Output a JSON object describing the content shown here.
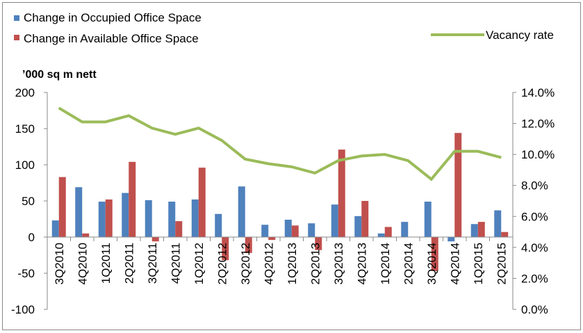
{
  "chart_data": {
    "type": "bar",
    "unit_label": "’000 sq m nett",
    "categories": [
      "3Q2010",
      "4Q2010",
      "1Q2011",
      "2Q2011",
      "3Q2011",
      "4Q2011",
      "1Q2012",
      "2Q2012",
      "3Q2012",
      "4Q2012",
      "1Q2013",
      "2Q2013",
      "3Q2013",
      "4Q2013",
      "1Q2014",
      "2Q2014",
      "3Q2014",
      "4Q2014",
      "1Q2015",
      "2Q2015"
    ],
    "series": [
      {
        "name": "Change in Occupied Office Space",
        "type": "bar",
        "axis": "left",
        "color": "#4f81bd",
        "values": [
          23,
          69,
          49,
          61,
          51,
          49,
          52,
          32,
          70,
          17,
          24,
          19,
          45,
          29,
          5,
          21,
          49,
          -6,
          18,
          37
        ]
      },
      {
        "name": "Change in Available Office Space",
        "type": "bar",
        "axis": "left",
        "color": "#c0504d",
        "values": [
          83,
          5,
          52,
          104,
          -6,
          22,
          96,
          -32,
          -22,
          -4,
          16,
          -18,
          121,
          50,
          14,
          0,
          -47,
          144,
          21,
          7
        ]
      },
      {
        "name": "Vacancy rate",
        "type": "line",
        "axis": "right",
        "color": "#9bbb59",
        "values": [
          13.0,
          12.1,
          12.1,
          12.5,
          11.7,
          11.3,
          11.7,
          10.9,
          9.7,
          9.4,
          9.2,
          8.8,
          9.6,
          9.9,
          10.0,
          9.6,
          8.4,
          10.2,
          10.2,
          9.8
        ]
      }
    ],
    "ylim": [
      -100,
      200
    ],
    "yticks": [
      "200",
      "150",
      "100",
      "50",
      "0",
      "-50",
      "-100"
    ],
    "y2lim": [
      0,
      14
    ],
    "y2ticks": [
      "14.0%",
      "12.0%",
      "10.0%",
      "8.0%",
      "6.0%",
      "4.0%",
      "2.0%",
      "0.0%"
    ],
    "legend_placement": "top"
  }
}
